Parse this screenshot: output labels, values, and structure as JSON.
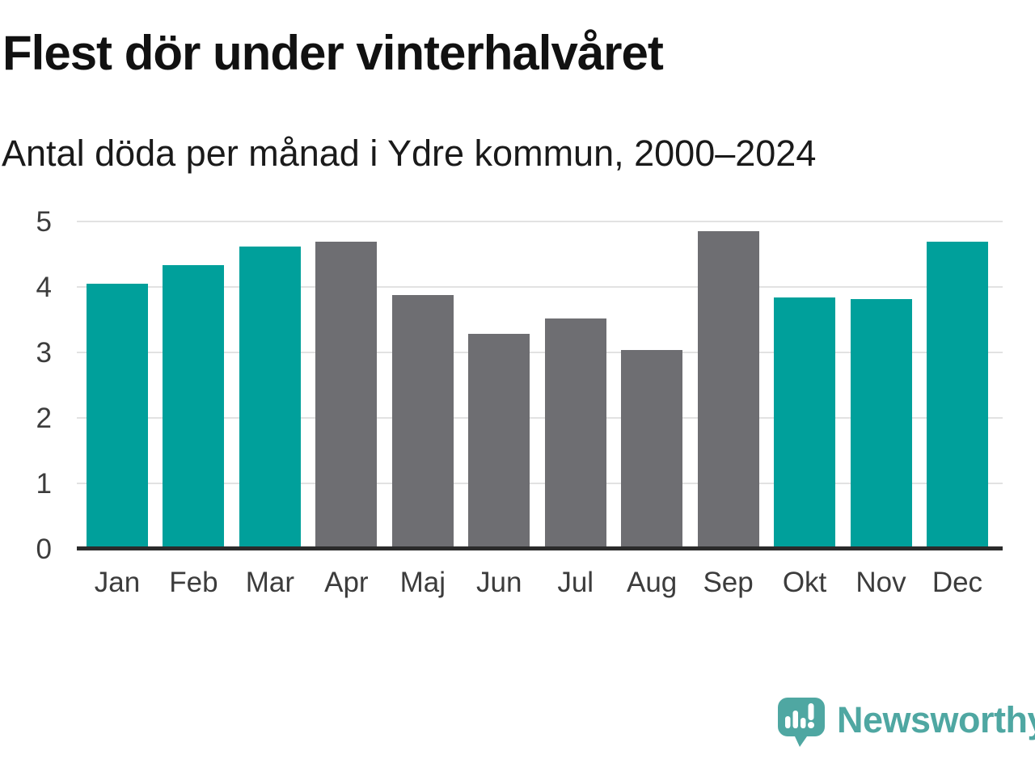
{
  "header": {
    "title": "Flest dör under vinterhalvåret",
    "subtitle": "Antal döda per månad i Ydre kommun, 2000–2024"
  },
  "chart_data": {
    "type": "bar",
    "title": "Flest dör under vinterhalvåret",
    "subtitle": "Antal döda per månad i Ydre kommun, 2000–2024",
    "categories": [
      "Jan",
      "Feb",
      "Mar",
      "Apr",
      "Maj",
      "Jun",
      "Jul",
      "Aug",
      "Sep",
      "Okt",
      "Nov",
      "Dec"
    ],
    "values": [
      4.05,
      4.33,
      4.62,
      4.69,
      3.88,
      3.28,
      3.52,
      3.04,
      4.85,
      3.84,
      3.81,
      4.69
    ],
    "highlighted": [
      true,
      true,
      true,
      false,
      false,
      false,
      false,
      false,
      false,
      true,
      true,
      true
    ],
    "xlabel": "",
    "ylabel": "",
    "ylim": [
      0,
      5
    ],
    "yticks": [
      0,
      1,
      2,
      3,
      4,
      5
    ],
    "ytick_labels": [
      "0",
      "1",
      "2",
      "3",
      "4",
      "5"
    ],
    "grid": true,
    "legend": null
  },
  "colors": {
    "highlight_teal": "#00A09B",
    "base_gray": "#6E6E72",
    "grid_gray": "#E2E2E2",
    "axis_baseline": "#2B2B2B",
    "tick_text": "#3C3C3C",
    "title_text": "#111111",
    "logo_teal": "#4FA7A2"
  },
  "footer": {
    "brand": "Newsworthy"
  }
}
